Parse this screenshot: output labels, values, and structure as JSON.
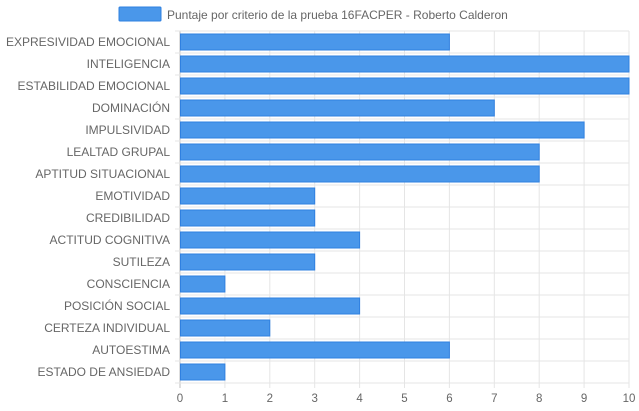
{
  "chart_data": {
    "type": "bar",
    "orientation": "horizontal",
    "categories": [
      "EXPRESIVIDAD EMOCIONAL",
      "INTELIGENCIA",
      "ESTABILIDAD EMOCIONAL",
      "DOMINACIÓN",
      "IMPULSIVIDAD",
      "LEALTAD GRUPAL",
      "APTITUD SITUACIONAL",
      "EMOTIVIDAD",
      "CREDIBILIDAD",
      "ACTITUD COGNITIVA",
      "SUTILEZA",
      "CONSCIENCIA",
      "POSICIÓN SOCIAL",
      "CERTEZA INDIVIDUAL",
      "AUTOESTIMA",
      "ESTADO DE ANSIEDAD"
    ],
    "series": [
      {
        "name": "Puntaje por criterio de la prueba 16FACPER - Roberto Calderon",
        "values": [
          6,
          10,
          10,
          7,
          9,
          8,
          8,
          3,
          3,
          4,
          3,
          1,
          4,
          2,
          6,
          1
        ]
      }
    ],
    "x_ticks": [
      "0",
      "1",
      "2",
      "3",
      "4",
      "5",
      "6",
      "7",
      "8",
      "9",
      "10"
    ],
    "xlim": [
      0,
      10
    ],
    "grid": true,
    "legend": "top-center",
    "colors": {
      "bar_fill": "#4a97ea",
      "bar_stroke": "#2f80e0",
      "grid": "#e5e5e5",
      "text": "#666666"
    }
  }
}
